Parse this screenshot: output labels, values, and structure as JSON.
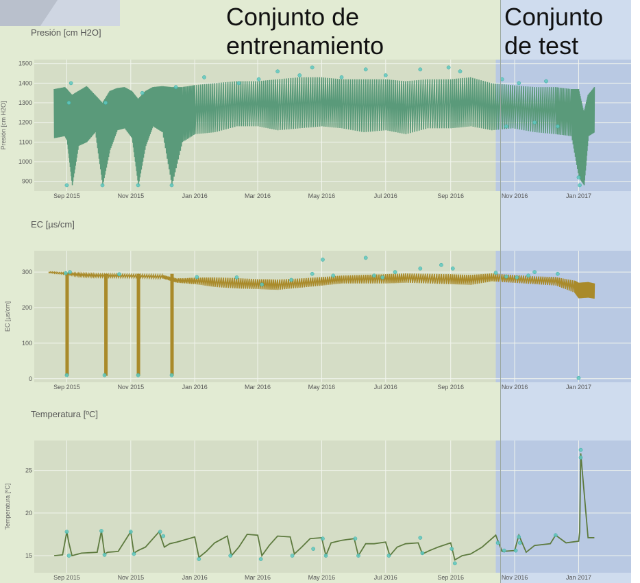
{
  "split": {
    "train_label": "Conjunto de\nentrenamiento",
    "test_label": "Conjunto\nde test",
    "train_color": "#e2ebd3",
    "test_color": "#cfdcee",
    "split_date": "2016-10-14"
  },
  "x_axis": {
    "range": [
      "2015-08-01",
      "2017-02-20"
    ],
    "ticks": [
      {
        "date": "2015-09-01",
        "label": "Sep 2015"
      },
      {
        "date": "2015-11-01",
        "label": "Nov 2015"
      },
      {
        "date": "2016-01-01",
        "label": "Jan 2016"
      },
      {
        "date": "2016-03-01",
        "label": "Mar 2016"
      },
      {
        "date": "2016-05-01",
        "label": "May 2016"
      },
      {
        "date": "2016-07-01",
        "label": "Jul 2016"
      },
      {
        "date": "2016-09-01",
        "label": "Sep 2016"
      },
      {
        "date": "2016-11-01",
        "label": "Nov 2016"
      },
      {
        "date": "2017-01-01",
        "label": "Jan 2017"
      }
    ]
  },
  "anomaly_color": "#5fc8c0",
  "chart_data": [
    {
      "type": "line",
      "title": "Presión [cm H2O]",
      "ylabel": "Presión [cm H2O]",
      "ylim": [
        850,
        1520
      ],
      "yticks": [
        900,
        1000,
        1100,
        1200,
        1300,
        1400,
        1500
      ],
      "line_color": "#5a9a7a",
      "grid": true,
      "series": [
        {
          "x": [
            "2015-08-20",
            "2015-08-30",
            "2015-09-01",
            "2015-09-06",
            "2015-09-12",
            "2015-09-20",
            "2015-09-28",
            "2015-10-05",
            "2015-10-12",
            "2015-10-19",
            "2015-10-26",
            "2015-11-02",
            "2015-11-08",
            "2015-11-15",
            "2015-11-22",
            "2015-12-01",
            "2015-12-10",
            "2015-12-20",
            "2016-01-01",
            "2016-01-20",
            "2016-02-10",
            "2016-03-01",
            "2016-03-20",
            "2016-04-10",
            "2016-05-01",
            "2016-05-20",
            "2016-06-10",
            "2016-07-01",
            "2016-07-20",
            "2016-08-10",
            "2016-09-01",
            "2016-09-20",
            "2016-10-10",
            "2016-10-30",
            "2016-11-20",
            "2016-12-10",
            "2016-12-25",
            "2017-01-01",
            "2017-01-06",
            "2017-01-10",
            "2017-01-16"
          ],
          "upper": [
            1370,
            1380,
            1370,
            1340,
            1360,
            1385,
            1340,
            1300,
            1360,
            1375,
            1380,
            1360,
            1320,
            1360,
            1380,
            1385,
            1380,
            1380,
            1390,
            1400,
            1410,
            1410,
            1420,
            1430,
            1430,
            1420,
            1420,
            1420,
            1410,
            1420,
            1420,
            1430,
            1400,
            1390,
            1380,
            1380,
            1370,
            1370,
            1250,
            1340,
            1380
          ],
          "lower": [
            1120,
            1130,
            1110,
            880,
            1080,
            1100,
            1150,
            880,
            1060,
            1160,
            1170,
            1120,
            880,
            1080,
            1180,
            1150,
            880,
            1100,
            1140,
            1150,
            1180,
            1180,
            1160,
            1170,
            1180,
            1170,
            1150,
            1160,
            1140,
            1170,
            1170,
            1180,
            1160,
            1170,
            1150,
            1140,
            1130,
            920,
            880,
            1130,
            1150
          ]
        }
      ],
      "anomalies": [
        [
          "2015-09-01",
          880
        ],
        [
          "2015-09-03",
          1300
        ],
        [
          "2015-09-05",
          1400
        ],
        [
          "2015-10-05",
          880
        ],
        [
          "2015-10-08",
          1300
        ],
        [
          "2015-11-08",
          880
        ],
        [
          "2015-11-12",
          1350
        ],
        [
          "2015-12-10",
          880
        ],
        [
          "2015-12-14",
          1380
        ],
        [
          "2016-01-10",
          1430
        ],
        [
          "2016-02-12",
          1400
        ],
        [
          "2016-03-02",
          1420
        ],
        [
          "2016-03-20",
          1460
        ],
        [
          "2016-04-10",
          1440
        ],
        [
          "2016-04-22",
          1480
        ],
        [
          "2016-05-20",
          1430
        ],
        [
          "2016-06-12",
          1470
        ],
        [
          "2016-07-01",
          1440
        ],
        [
          "2016-08-03",
          1470
        ],
        [
          "2016-08-30",
          1480
        ],
        [
          "2016-09-10",
          1460
        ],
        [
          "2016-10-20",
          1420
        ],
        [
          "2016-10-24",
          1180
        ],
        [
          "2016-11-05",
          1400
        ],
        [
          "2016-11-20",
          1200
        ],
        [
          "2016-12-01",
          1410
        ],
        [
          "2016-12-12",
          1180
        ],
        [
          "2017-01-01",
          920
        ],
        [
          "2017-01-02",
          880
        ]
      ]
    },
    {
      "type": "line",
      "title": "EC [µs/cm]",
      "ylabel": "EC [µs/cm]",
      "ylim": [
        -10,
        360
      ],
      "yticks": [
        0,
        100,
        200,
        300
      ],
      "line_color": "#a98a2a",
      "grid": true,
      "series": [
        {
          "x": [
            "2015-08-15",
            "2015-09-01",
            "2015-09-15",
            "2015-10-01",
            "2015-10-20",
            "2015-11-10",
            "2015-12-01",
            "2015-12-15",
            "2016-01-01",
            "2016-01-20",
            "2016-02-10",
            "2016-03-01",
            "2016-03-20",
            "2016-04-10",
            "2016-05-01",
            "2016-05-20",
            "2016-06-10",
            "2016-07-01",
            "2016-07-20",
            "2016-08-10",
            "2016-09-01",
            "2016-09-20",
            "2016-10-10",
            "2016-10-30",
            "2016-11-20",
            "2016-12-10",
            "2016-12-28",
            "2017-01-01",
            "2017-01-10",
            "2017-01-16"
          ],
          "upper": [
            301,
            298,
            296,
            294,
            294,
            293,
            292,
            282,
            284,
            285,
            283,
            280,
            279,
            282,
            286,
            290,
            292,
            294,
            296,
            295,
            294,
            292,
            296,
            292,
            288,
            286,
            276,
            270,
            272,
            268
          ],
          "lower": [
            298,
            293,
            288,
            286,
            285,
            284,
            282,
            270,
            266,
            258,
            254,
            252,
            250,
            256,
            262,
            268,
            268,
            268,
            270,
            268,
            266,
            264,
            274,
            270,
            266,
            262,
            242,
            226,
            228,
            225
          ]
        }
      ],
      "dips": [
        "2015-09-01",
        "2015-10-08",
        "2015-11-08",
        "2015-12-10"
      ],
      "anomalies": [
        [
          "2015-09-01",
          10
        ],
        [
          "2015-08-31",
          297
        ],
        [
          "2015-09-04",
          300
        ],
        [
          "2015-10-07",
          10
        ],
        [
          "2015-10-21",
          294
        ],
        [
          "2015-11-08",
          10
        ],
        [
          "2015-12-10",
          10
        ],
        [
          "2016-01-03",
          286
        ],
        [
          "2016-02-10",
          285
        ],
        [
          "2016-03-05",
          265
        ],
        [
          "2016-04-02",
          278
        ],
        [
          "2016-04-22",
          295
        ],
        [
          "2016-05-02",
          335
        ],
        [
          "2016-05-12",
          290
        ],
        [
          "2016-06-12",
          340
        ],
        [
          "2016-06-20",
          290
        ],
        [
          "2016-06-28",
          285
        ],
        [
          "2016-07-10",
          300
        ],
        [
          "2016-08-03",
          310
        ],
        [
          "2016-08-23",
          320
        ],
        [
          "2016-09-03",
          310
        ],
        [
          "2016-10-14",
          298
        ],
        [
          "2016-10-24",
          287
        ],
        [
          "2016-11-03",
          285
        ],
        [
          "2016-11-14",
          290
        ],
        [
          "2016-11-20",
          300
        ],
        [
          "2016-12-12",
          295
        ],
        [
          "2017-01-01",
          2
        ]
      ]
    },
    {
      "type": "line",
      "title": "Temperatura [ºC]",
      "ylabel": "Temperatura [ºC]",
      "ylim": [
        13,
        28.5
      ],
      "yticks": [
        15,
        20,
        25
      ],
      "line_color": "#5d7a3e",
      "grid": true,
      "series": [
        {
          "x": [
            "2015-08-20",
            "2015-08-28",
            "2015-09-01",
            "2015-09-03",
            "2015-09-06",
            "2015-09-15",
            "2015-09-30",
            "2015-10-04",
            "2015-10-07",
            "2015-10-10",
            "2015-10-20",
            "2015-11-01",
            "2015-11-04",
            "2015-11-08",
            "2015-11-15",
            "2015-11-28",
            "2015-12-03",
            "2015-12-08",
            "2015-12-15",
            "2016-01-01",
            "2016-01-05",
            "2016-01-12",
            "2016-01-20",
            "2016-02-01",
            "2016-02-05",
            "2016-02-12",
            "2016-02-20",
            "2016-03-01",
            "2016-03-05",
            "2016-03-12",
            "2016-03-20",
            "2016-04-01",
            "2016-04-05",
            "2016-04-12",
            "2016-04-20",
            "2016-05-01",
            "2016-05-05",
            "2016-05-10",
            "2016-05-20",
            "2016-06-01",
            "2016-06-05",
            "2016-06-12",
            "2016-06-20",
            "2016-07-01",
            "2016-07-05",
            "2016-07-12",
            "2016-07-20",
            "2016-08-01",
            "2016-08-05",
            "2016-08-12",
            "2016-08-20",
            "2016-09-01",
            "2016-09-05",
            "2016-09-12",
            "2016-09-20",
            "2016-10-01",
            "2016-10-14",
            "2016-10-20",
            "2016-11-01",
            "2016-11-05",
            "2016-11-12",
            "2016-11-20",
            "2016-12-05",
            "2016-12-10",
            "2016-12-20",
            "2017-01-01",
            "2017-01-02",
            "2017-01-03",
            "2017-01-10",
            "2017-01-16"
          ],
          "y": [
            15.0,
            15.1,
            17.8,
            16.5,
            15.0,
            15.3,
            15.4,
            17.9,
            15.2,
            15.4,
            15.5,
            17.8,
            15.3,
            15.6,
            16.0,
            17.8,
            16.0,
            16.4,
            16.6,
            17.2,
            14.8,
            15.5,
            16.5,
            17.3,
            15.0,
            16.0,
            17.5,
            17.4,
            15.0,
            16.2,
            17.3,
            17.2,
            15.2,
            16.0,
            17.0,
            17.1,
            15.0,
            16.5,
            16.8,
            17.0,
            15.0,
            16.4,
            16.4,
            16.6,
            15.0,
            16.0,
            16.4,
            16.5,
            15.2,
            15.6,
            16.0,
            16.5,
            14.5,
            15.0,
            15.2,
            16.0,
            17.4,
            15.5,
            15.6,
            17.4,
            15.4,
            16.2,
            16.4,
            17.4,
            16.5,
            16.7,
            17.8,
            27.0,
            17.1,
            17.1
          ]
        }
      ],
      "anomalies": [
        [
          "2015-09-01",
          17.8
        ],
        [
          "2015-09-03",
          15.0
        ],
        [
          "2015-10-04",
          17.9
        ],
        [
          "2015-10-07",
          15.1
        ],
        [
          "2015-11-01",
          17.8
        ],
        [
          "2015-11-04",
          15.2
        ],
        [
          "2015-11-29",
          17.8
        ],
        [
          "2015-12-02",
          17.3
        ],
        [
          "2016-01-05",
          14.6
        ],
        [
          "2016-02-04",
          15.0
        ],
        [
          "2016-03-04",
          14.6
        ],
        [
          "2016-04-03",
          15.0
        ],
        [
          "2016-04-23",
          15.8
        ],
        [
          "2016-05-02",
          17.0
        ],
        [
          "2016-05-05",
          15.0
        ],
        [
          "2016-06-02",
          17.0
        ],
        [
          "2016-06-05",
          15.0
        ],
        [
          "2016-07-04",
          15.0
        ],
        [
          "2016-08-03",
          17.1
        ],
        [
          "2016-08-05",
          15.3
        ],
        [
          "2016-09-02",
          15.8
        ],
        [
          "2016-09-05",
          14.1
        ],
        [
          "2016-10-16",
          16.5
        ],
        [
          "2016-10-22",
          15.6
        ],
        [
          "2016-11-02",
          15.6
        ],
        [
          "2016-11-05",
          17.2
        ],
        [
          "2016-11-06",
          16.5
        ],
        [
          "2016-12-10",
          17.4
        ],
        [
          "2017-01-03",
          27.4
        ],
        [
          "2017-01-03",
          26.5
        ]
      ]
    }
  ]
}
